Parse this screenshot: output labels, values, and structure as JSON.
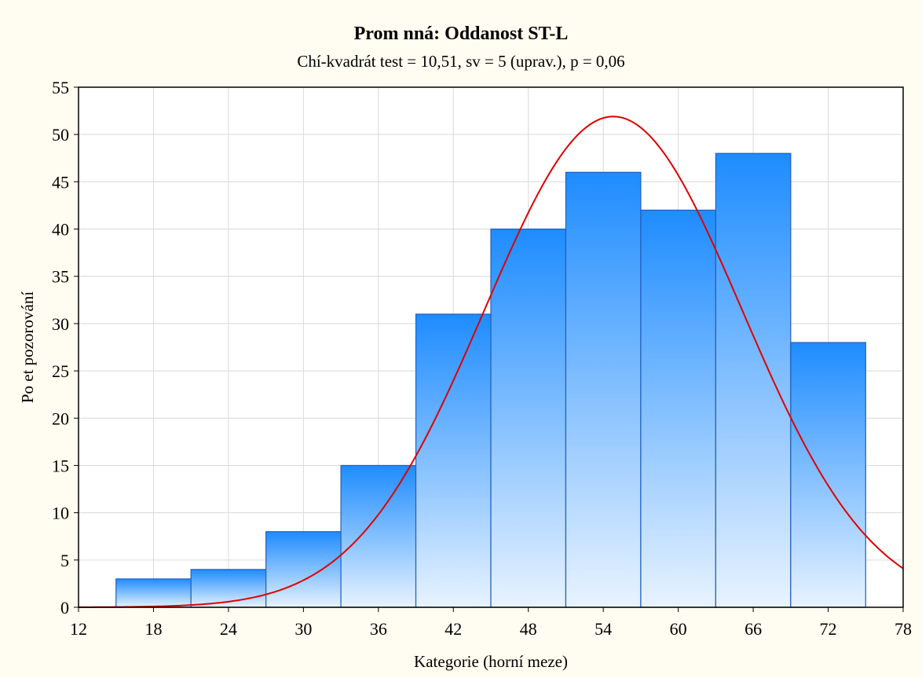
{
  "chart_data": {
    "type": "bar",
    "title": "Prom nná: Oddanost ST-L",
    "subtitle": "Chí-kvadrát test = 10,51, sv = 5 (uprav.), p = 0,06",
    "xlabel": "Kategorie (horní meze)",
    "ylabel": "Po et pozorování",
    "xlim": [
      12,
      78
    ],
    "ylim": [
      0,
      55
    ],
    "x_ticks": [
      12,
      18,
      24,
      30,
      36,
      42,
      48,
      54,
      60,
      66,
      72,
      78
    ],
    "y_ticks": [
      0,
      5,
      10,
      15,
      20,
      25,
      30,
      35,
      40,
      45,
      50,
      55
    ],
    "grid": true,
    "bins": [
      {
        "start": 15,
        "end": 21,
        "count": 3
      },
      {
        "start": 21,
        "end": 27,
        "count": 4
      },
      {
        "start": 27,
        "end": 33,
        "count": 8
      },
      {
        "start": 33,
        "end": 39,
        "count": 15
      },
      {
        "start": 39,
        "end": 45,
        "count": 31
      },
      {
        "start": 45,
        "end": 51,
        "count": 40
      },
      {
        "start": 51,
        "end": 57,
        "count": 46
      },
      {
        "start": 57,
        "end": 63,
        "count": 42
      },
      {
        "start": 63,
        "end": 69,
        "count": 48
      },
      {
        "start": 69,
        "end": 75,
        "count": 28
      }
    ],
    "normal_fit": {
      "mean": 54.8,
      "sd": 10.3,
      "peak": 51.9,
      "color": "#e00000"
    },
    "colors": {
      "bar_top": "#1e8cff",
      "bar_bottom": "#e8f3ff",
      "bar_edge": "#1f5fbf",
      "grid": "#d9d9d9"
    }
  }
}
